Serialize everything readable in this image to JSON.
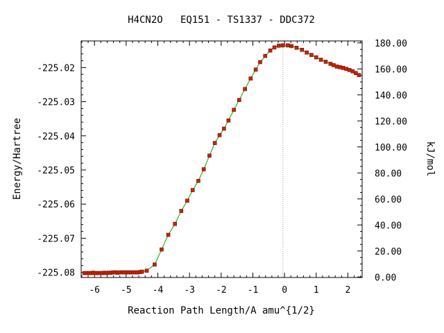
{
  "chart_data": {
    "type": "line",
    "title": "H4CN2O   EQ151 - TS1337 - DDC372",
    "xlabel": "Reaction Path Length/A amu^{1/2}",
    "ylabel_left": "Energy/Hartree",
    "ylabel_right": "kJ/mol",
    "xlim": [
      -6.42,
      2.45
    ],
    "ylim_left": [
      -225.0815,
      -225.0122
    ],
    "ylim_right": [
      -0.4,
      181.5
    ],
    "x_ticks": [
      -6,
      -5,
      -4,
      -3,
      -2,
      -1,
      0,
      1,
      2
    ],
    "x_tick_labels": [
      "-6",
      "-5",
      "-4",
      "-3",
      "-2",
      "-1",
      "0",
      "1",
      "2"
    ],
    "y_left_ticks": [
      -225.08,
      -225.07,
      -225.06,
      -225.05,
      -225.04,
      -225.03,
      -225.02
    ],
    "y_left_tick_labels": [
      "-225.08",
      "-225.07",
      "-225.06",
      "-225.05",
      "-225.04",
      "-225.03",
      "-225.02"
    ],
    "y_right_ticks": [
      0,
      20,
      40,
      60,
      80,
      100,
      120,
      140,
      160,
      180
    ],
    "y_right_tick_labels": [
      "0.00",
      "20.00",
      "40.00",
      "60.00",
      "80.00",
      "100.00",
      "120.00",
      "140.00",
      "160.00",
      "180.00"
    ],
    "ts_marker_x": -0.05,
    "grid": false,
    "colors": {
      "line": "#00aa00",
      "marker": "#cc2200",
      "ts_line": "#999999"
    },
    "series": [
      {
        "x": [
          -6.32,
          -6.25,
          -6.18,
          -6.11,
          -6.04,
          -5.97,
          -5.9,
          -5.83,
          -5.76,
          -5.69,
          -5.62,
          -5.55,
          -5.48,
          -5.41,
          -5.34,
          -5.27,
          -5.2,
          -5.13,
          -5.06,
          -4.99,
          -4.92,
          -4.85,
          -4.78,
          -4.71,
          -4.64,
          -4.57,
          -4.5,
          -4.35,
          -4.1,
          -3.88,
          -3.67,
          -3.46,
          -3.26,
          -3.07,
          -2.9,
          -2.72,
          -2.55,
          -2.37,
          -2.2,
          -2.05,
          -1.91,
          -1.77,
          -1.6,
          -1.43,
          -1.25,
          -1.07,
          -0.91,
          -0.77,
          -0.61,
          -0.45,
          -0.32,
          -0.18,
          -0.05,
          0.1,
          0.22,
          0.38,
          0.55,
          0.7,
          0.85,
          1.0,
          1.15,
          1.3,
          1.45,
          1.55,
          1.65,
          1.75,
          1.85,
          1.95,
          2.05,
          2.15,
          2.25,
          2.35
        ],
        "y": [
          -225.0802,
          -225.0802,
          -225.0802,
          -225.0802,
          -225.0801,
          -225.0802,
          -225.0802,
          -225.0802,
          -225.0802,
          -225.0801,
          -225.0802,
          -225.0801,
          -225.0801,
          -225.08,
          -225.08,
          -225.0801,
          -225.08,
          -225.08,
          -225.08,
          -225.08,
          -225.08,
          -225.08,
          -225.08,
          -225.08,
          -225.08,
          -225.0799,
          -225.0798,
          -225.0795,
          -225.0777,
          -225.0733,
          -225.069,
          -225.0658,
          -225.062,
          -225.059,
          -225.0559,
          -225.0532,
          -225.0498,
          -225.0458,
          -225.0421,
          -225.0398,
          -225.0379,
          -225.0355,
          -225.0324,
          -225.0295,
          -225.0263,
          -225.0232,
          -225.0206,
          -225.0184,
          -225.0166,
          -225.015,
          -225.0141,
          -225.0136,
          -225.0135,
          -225.0135,
          -225.0137,
          -225.0142,
          -225.0148,
          -225.0156,
          -225.0163,
          -225.017,
          -225.0177,
          -225.0183,
          -225.0189,
          -225.0193,
          -225.0197,
          -225.0199,
          -225.0201,
          -225.0204,
          -225.0207,
          -225.0211,
          -225.0216,
          -225.0222
        ]
      }
    ]
  }
}
